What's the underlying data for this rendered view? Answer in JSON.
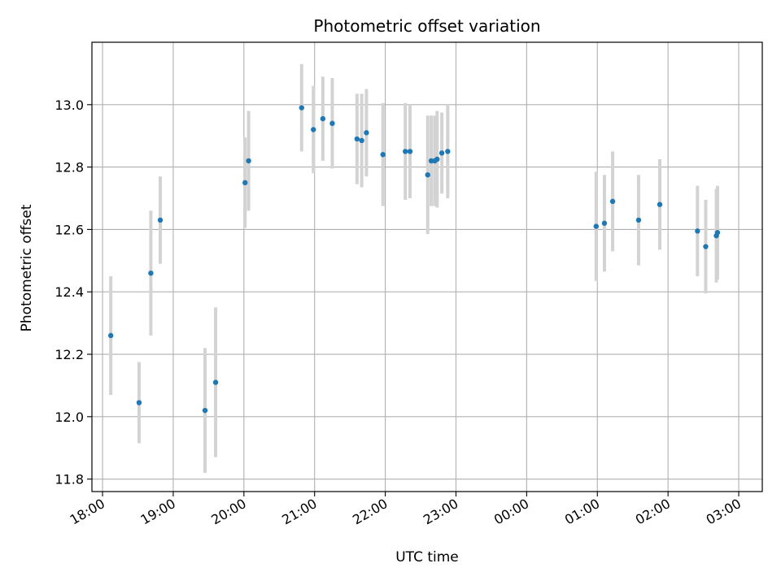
{
  "chart_data": {
    "type": "scatter",
    "title": "Photometric offset variation",
    "xlabel": "UTC time",
    "ylabel": "Photometric offset",
    "x_unit": "UTC time (HH:MM), 18:00 on day 1 through 03:00 on day 2",
    "xlim": [
      "17:51",
      "03:20"
    ],
    "ylim": [
      11.76,
      13.2
    ],
    "x_ticks": [
      "18:00",
      "19:00",
      "20:00",
      "21:00",
      "22:00",
      "23:00",
      "00:00",
      "01:00",
      "02:00",
      "03:00"
    ],
    "y_ticks": [
      11.8,
      12.0,
      12.2,
      12.4,
      12.6,
      12.8,
      13.0
    ],
    "y_tick_labels": [
      "11.8",
      "12.0",
      "12.2",
      "12.4",
      "12.6",
      "12.8",
      "13.0"
    ],
    "grid": true,
    "colors": {
      "point": "#1f77b4",
      "errorbar": "#d3d3d3",
      "grid": "#b0b0b0"
    },
    "points": [
      {
        "x": "18:07",
        "y": 12.26,
        "yerr": 0.19
      },
      {
        "x": "18:31",
        "y": 12.045,
        "yerr": 0.13
      },
      {
        "x": "18:41",
        "y": 12.46,
        "yerr": 0.2
      },
      {
        "x": "18:49",
        "y": 12.63,
        "yerr": 0.14
      },
      {
        "x": "19:27",
        "y": 12.02,
        "yerr": 0.2
      },
      {
        "x": "19:36",
        "y": 12.11,
        "yerr": 0.24
      },
      {
        "x": "20:01",
        "y": 12.75,
        "yerr": 0.145
      },
      {
        "x": "20:04",
        "y": 12.82,
        "yerr": 0.16
      },
      {
        "x": "20:49",
        "y": 12.99,
        "yerr": 0.14
      },
      {
        "x": "20:59",
        "y": 12.92,
        "yerr": 0.14
      },
      {
        "x": "21:07",
        "y": 12.955,
        "yerr": 0.135
      },
      {
        "x": "21:15",
        "y": 12.94,
        "yerr": 0.145
      },
      {
        "x": "21:36",
        "y": 12.89,
        "yerr": 0.145
      },
      {
        "x": "21:40",
        "y": 12.885,
        "yerr": 0.15
      },
      {
        "x": "21:44",
        "y": 12.91,
        "yerr": 0.14
      },
      {
        "x": "21:58",
        "y": 12.84,
        "yerr": 0.165
      },
      {
        "x": "22:17",
        "y": 12.85,
        "yerr": 0.155
      },
      {
        "x": "22:21",
        "y": 12.85,
        "yerr": 0.15
      },
      {
        "x": "22:36",
        "y": 12.775,
        "yerr": 0.19
      },
      {
        "x": "22:39",
        "y": 12.82,
        "yerr": 0.145
      },
      {
        "x": "22:42",
        "y": 12.82,
        "yerr": 0.145
      },
      {
        "x": "22:44",
        "y": 12.825,
        "yerr": 0.155
      },
      {
        "x": "22:48",
        "y": 12.845,
        "yerr": 0.13
      },
      {
        "x": "22:53",
        "y": 12.85,
        "yerr": 0.15
      },
      {
        "x": "00:59",
        "y": 12.61,
        "yerr": 0.175
      },
      {
        "x": "01:06",
        "y": 12.62,
        "yerr": 0.155
      },
      {
        "x": "01:13",
        "y": 12.69,
        "yerr": 0.16
      },
      {
        "x": "01:35",
        "y": 12.63,
        "yerr": 0.145
      },
      {
        "x": "01:53",
        "y": 12.68,
        "yerr": 0.145
      },
      {
        "x": "02:25",
        "y": 12.595,
        "yerr": 0.145
      },
      {
        "x": "02:32",
        "y": 12.545,
        "yerr": 0.15
      },
      {
        "x": "02:41",
        "y": 12.58,
        "yerr": 0.15
      },
      {
        "x": "02:42",
        "y": 12.59,
        "yerr": 0.15
      }
    ]
  }
}
